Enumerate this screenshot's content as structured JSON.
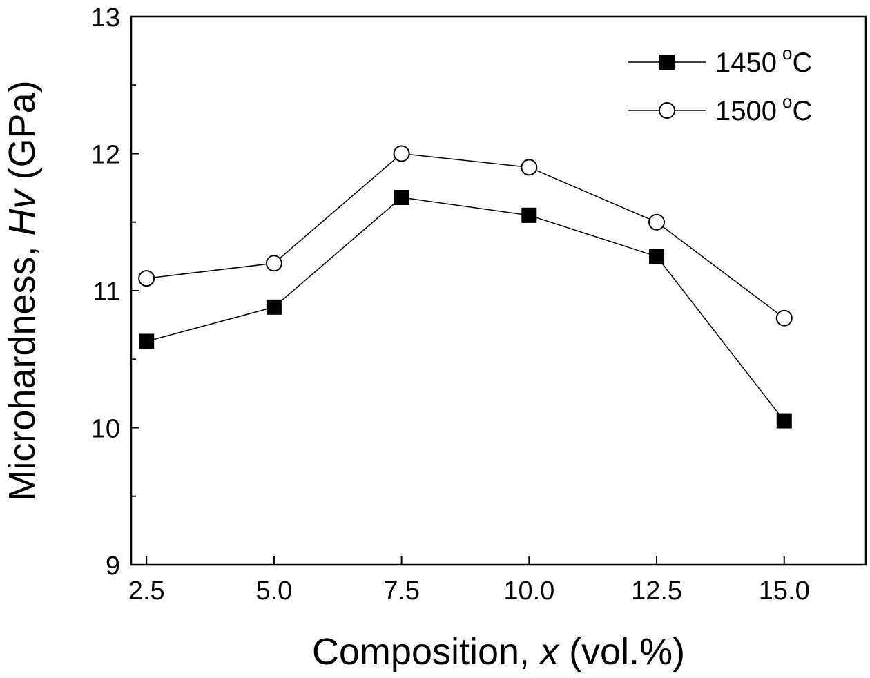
{
  "chart_data": {
    "type": "line",
    "title": "",
    "xlabel": {
      "prefix": "Composition, ",
      "var": "x",
      "suffix": " (vol.%)"
    },
    "ylabel": {
      "prefix": "Microhardness, ",
      "var": "Hv",
      "suffix": " (GPa)"
    },
    "xlim": [
      2.2,
      16.6
    ],
    "ylim": [
      9,
      13
    ],
    "xticks": [
      2.5,
      5.0,
      7.5,
      10.0,
      12.5,
      15.0
    ],
    "xtick_labels": [
      "2.5",
      "5.0",
      "7.5",
      "10.0",
      "12.5",
      "15.0"
    ],
    "yticks": [
      9,
      10,
      11,
      12,
      13
    ],
    "ytick_labels": [
      "9",
      "10",
      "11",
      "12",
      "13"
    ],
    "y_minor_step": 0.5,
    "grid": false,
    "legend_position": "top-right",
    "x": [
      2.5,
      5.0,
      7.5,
      10.0,
      12.5,
      15.0
    ],
    "series": [
      {
        "name": "1450",
        "unit_sup": "o",
        "unit": "C",
        "marker": "filled-square",
        "color": "#000000",
        "values": [
          10.63,
          10.88,
          11.68,
          11.55,
          11.25,
          10.05
        ]
      },
      {
        "name": "1500",
        "unit_sup": "o",
        "unit": "C",
        "marker": "open-circle",
        "color": "#000000",
        "values": [
          11.09,
          11.2,
          12.0,
          11.9,
          11.5,
          10.8
        ]
      }
    ]
  }
}
